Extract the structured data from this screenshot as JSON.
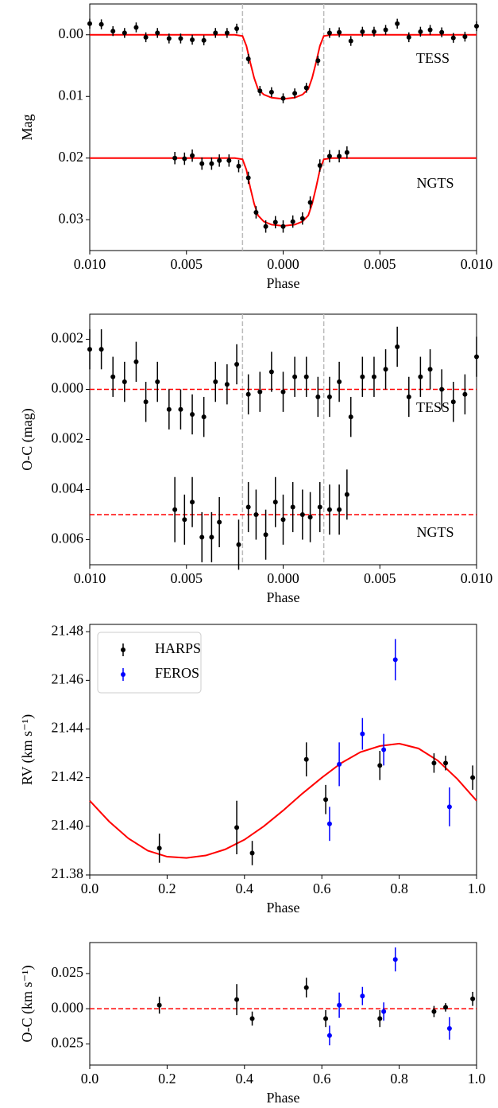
{
  "chart_data": [
    {
      "type": "errorbar",
      "xlabel": "Phase",
      "ylabel": "Mag",
      "xlim": [
        -0.01,
        0.01
      ],
      "xticks": [
        {
          "value": -0.01,
          "label": "0.010"
        },
        {
          "value": -0.005,
          "label": "0.005"
        },
        {
          "value": 0,
          "label": "0.000"
        },
        0.005,
        {
          "value": 0.01,
          "label": "0.010"
        }
      ],
      "ylim": [
        0.035,
        -0.005
      ],
      "yticks": [
        {
          "value": 0,
          "label": "0.00"
        },
        0.01,
        0.02,
        0.03
      ],
      "vlines": [
        -0.0021,
        0.0021
      ],
      "vline_color": "#bbbbbb",
      "annotations": [
        "TESS",
        "NGTS"
      ],
      "series": [
        {
          "color": "#000000",
          "x": [
            -0.01,
            -0.0094,
            -0.0088,
            -0.0082,
            -0.0076,
            -0.0071,
            -0.0065,
            -0.0059,
            -0.0053,
            -0.0047,
            -0.0041,
            -0.0035,
            -0.0029,
            -0.0024,
            -0.0018,
            -0.0012,
            -0.0006,
            0,
            0.0006,
            0.0012,
            0.0018,
            0.0024,
            0.0029,
            0.0035,
            0.0041,
            0.0047,
            0.0053,
            0.0059,
            0.0065,
            0.0071,
            0.0076,
            0.0082,
            0.0088,
            0.0094,
            0.01
          ],
          "values": [
            -0.0018,
            -0.0017,
            -0.0006,
            -0.0003,
            -0.0012,
            0.0004,
            -0.0003,
            0.0006,
            0.0006,
            0.0008,
            0.0009,
            -0.0003,
            -0.0003,
            -0.001,
            0.0039,
            0.0091,
            0.0093,
            0.0103,
            0.0095,
            0.0086,
            0.0042,
            -0.0003,
            -0.0004,
            0.001,
            -0.0005,
            -0.0005,
            -0.0008,
            -0.0018,
            0.0004,
            -0.0005,
            -0.0008,
            -0.0004,
            0.0005,
            0.0003,
            -0.0014
          ],
          "errors": [
            0.0008,
            0.0008,
            0.0008,
            0.0008,
            0.0008,
            0.0008,
            0.0008,
            0.0008,
            0.0008,
            0.0008,
            0.0008,
            0.0008,
            0.0008,
            0.0008,
            0.0008,
            0.0008,
            0.0008,
            0.0008,
            0.0008,
            0.0008,
            0.0008,
            0.0008,
            0.0008,
            0.0008,
            0.0008,
            0.0008,
            0.0008,
            0.0008,
            0.0008,
            0.0008,
            0.0008,
            0.0008,
            0.0008,
            0.0008,
            0.0008
          ]
        },
        {
          "color": "#000000",
          "x": [
            -0.0056,
            -0.0051,
            -0.0047,
            -0.0042,
            -0.0037,
            -0.0033,
            -0.0028,
            -0.0023,
            -0.0018,
            -0.0014,
            -0.0009,
            -0.0004,
            0,
            0.0005,
            0.001,
            0.0014,
            0.0019,
            0.0024,
            0.0029,
            0.0033
          ],
          "values": [
            0.02,
            0.0201,
            0.0196,
            0.0209,
            0.0209,
            0.0204,
            0.0204,
            0.0213,
            0.0232,
            0.0288,
            0.0311,
            0.0304,
            0.0311,
            0.0303,
            0.0298,
            0.0272,
            0.0212,
            0.0197,
            0.0197,
            0.0191
          ],
          "errors": [
            0.001,
            0.001,
            0.001,
            0.001,
            0.001,
            0.001,
            0.001,
            0.001,
            0.001,
            0.001,
            0.001,
            0.001,
            0.001,
            0.001,
            0.001,
            0.001,
            0.001,
            0.001,
            0.001,
            0.001
          ]
        }
      ],
      "models": [
        {
          "color": "#ff0000",
          "x": [
            -0.01,
            -0.0025,
            -0.0021,
            -0.0019,
            -0.0017,
            -0.0015,
            -0.0013,
            -0.001,
            -0.0006,
            0,
            0.0006,
            0.001,
            0.0013,
            0.0015,
            0.0017,
            0.0019,
            0.0021,
            0.0025,
            0.01
          ],
          "values": [
            0,
            0,
            0.0002,
            0.0018,
            0.0045,
            0.007,
            0.0088,
            0.0097,
            0.0102,
            0.0104,
            0.0102,
            0.0097,
            0.0088,
            0.007,
            0.0045,
            0.0018,
            0.0002,
            0,
            0
          ]
        },
        {
          "color": "#ff0000",
          "x": [
            -0.01,
            -0.0025,
            -0.0021,
            -0.0019,
            -0.0017,
            -0.0015,
            -0.0013,
            -0.001,
            -0.0006,
            0,
            0.0006,
            0.001,
            0.0013,
            0.0015,
            0.0017,
            0.0019,
            0.0021,
            0.0025,
            0.01
          ],
          "values": [
            0.02,
            0.02,
            0.0202,
            0.0219,
            0.0248,
            0.0274,
            0.0293,
            0.0303,
            0.0308,
            0.031,
            0.0308,
            0.0303,
            0.0293,
            0.0274,
            0.0248,
            0.0219,
            0.0202,
            0.02,
            0.02
          ]
        }
      ]
    },
    {
      "type": "errorbar",
      "xlabel": "Phase",
      "ylabel": "O-C (mag)",
      "xlim": [
        -0.01,
        0.01
      ],
      "xticks": [
        {
          "value": -0.01,
          "label": "0.010"
        },
        {
          "value": -0.005,
          "label": "0.005"
        },
        {
          "value": 0,
          "label": "0.000"
        },
        0.005,
        {
          "value": 0.01,
          "label": "0.010"
        }
      ],
      "ylim": [
        0.007,
        -0.003
      ],
      "yticks": [
        {
          "value": -0.002,
          "label": "0.002"
        },
        {
          "value": 0,
          "label": "0.000"
        },
        0.002,
        0.004,
        0.006
      ],
      "vlines": [
        -0.0021,
        0.0021
      ],
      "vline_color": "#bbbbbb",
      "hlines": [
        0,
        0.005
      ],
      "hline_color": "#ff0000",
      "annotations": [
        "TESS",
        "NGTS"
      ],
      "series": [
        {
          "color": "#000000",
          "x": [
            -0.01,
            -0.0094,
            -0.0088,
            -0.0082,
            -0.0076,
            -0.0071,
            -0.0065,
            -0.0059,
            -0.0053,
            -0.0047,
            -0.0041,
            -0.0035,
            -0.0029,
            -0.0024,
            -0.0018,
            -0.0012,
            -0.0006,
            0,
            0.0006,
            0.0012,
            0.0018,
            0.0024,
            0.0029,
            0.0035,
            0.0041,
            0.0047,
            0.0053,
            0.0059,
            0.0065,
            0.0071,
            0.0076,
            0.0082,
            0.0088,
            0.0094,
            0.01
          ],
          "values": [
            -0.0016,
            -0.0016,
            -0.0005,
            -0.0003,
            -0.0011,
            0.0005,
            -0.0003,
            0.0008,
            0.0008,
            0.001,
            0.0011,
            -0.0003,
            -0.0002,
            -0.001,
            0.0002,
            0.0001,
            -0.0007,
            0.0001,
            -0.0005,
            -0.0005,
            0.0003,
            0.0003,
            -0.0003,
            0.0011,
            -0.0005,
            -0.0005,
            -0.0008,
            -0.0017,
            0.0003,
            -0.0005,
            -0.0008,
            0,
            0.0005,
            0.0002,
            -0.0013
          ],
          "errors": [
            0.0008,
            0.0008,
            0.0008,
            0.0008,
            0.0008,
            0.0008,
            0.0008,
            0.0008,
            0.0008,
            0.0008,
            0.0008,
            0.0008,
            0.0008,
            0.0008,
            0.0008,
            0.0008,
            0.0008,
            0.0008,
            0.0008,
            0.0008,
            0.0008,
            0.0008,
            0.0008,
            0.0008,
            0.0008,
            0.0008,
            0.0008,
            0.0008,
            0.0008,
            0.0008,
            0.0008,
            0.0008,
            0.0008,
            0.0008,
            0.0008
          ]
        },
        {
          "color": "#000000",
          "x": [
            -0.0056,
            -0.0051,
            -0.0047,
            -0.0042,
            -0.0037,
            -0.0033,
            -0.0023,
            -0.0018,
            -0.0014,
            -0.0009,
            -0.0004,
            0,
            0.0005,
            0.001,
            0.0014,
            0.0019,
            0.0024,
            0.0029,
            0.0033
          ],
          "values": [
            0.0048,
            0.0052,
            0.0045,
            0.0059,
            0.0059,
            0.0053,
            0.0062,
            0.0047,
            0.005,
            0.0058,
            0.0045,
            0.0052,
            0.0047,
            0.005,
            0.0051,
            0.0047,
            0.0048,
            0.0048,
            0.0042
          ],
          "errors": [
            0.0013,
            0.001,
            0.001,
            0.001,
            0.001,
            0.001,
            0.001,
            0.001,
            0.001,
            0.001,
            0.001,
            0.001,
            0.001,
            0.001,
            0.001,
            0.001,
            0.001,
            0.001,
            0.001
          ]
        }
      ]
    },
    {
      "type": "errorbar",
      "xlabel": "Phase",
      "ylabel": "RV (km s⁻¹)",
      "xlim": [
        0,
        1
      ],
      "xticks": [
        {
          "value": 0,
          "label": "0.0"
        },
        0.2,
        0.4,
        0.6,
        0.8,
        {
          "value": 1,
          "label": "1.0"
        }
      ],
      "ylim": [
        21.38,
        21.483
      ],
      "yticks": [
        21.38,
        {
          "value": 21.4,
          "label": "21.40"
        },
        21.42,
        21.44,
        21.46,
        21.48
      ],
      "legend": "upper left",
      "series": [
        {
          "name": "HARPS",
          "color": "#000000",
          "x": [
            0.18,
            0.38,
            0.42,
            0.56,
            0.61,
            0.75,
            0.89,
            0.92,
            0.99
          ],
          "values": [
            21.391,
            21.3995,
            21.389,
            21.4275,
            21.411,
            21.425,
            21.426,
            21.426,
            21.42
          ],
          "errors": [
            0.006,
            0.011,
            0.005,
            0.007,
            0.006,
            0.006,
            0.004,
            0.003,
            0.005
          ]
        },
        {
          "name": "FEROS",
          "color": "#0000ff",
          "x": [
            0.62,
            0.645,
            0.705,
            0.76,
            0.79,
            0.93
          ],
          "values": [
            21.401,
            21.4255,
            21.438,
            21.4315,
            21.4685,
            21.408
          ],
          "errors": [
            0.007,
            0.009,
            0.0065,
            0.0065,
            0.0085,
            0.008
          ]
        }
      ],
      "models": [
        {
          "color": "#ff0000",
          "x": [
            0,
            0.05,
            0.1,
            0.15,
            0.2,
            0.25,
            0.3,
            0.35,
            0.4,
            0.45,
            0.5,
            0.55,
            0.6,
            0.65,
            0.7,
            0.75,
            0.8,
            0.85,
            0.9,
            0.95,
            1
          ],
          "values": [
            21.4105,
            21.402,
            21.395,
            21.39,
            21.3875,
            21.387,
            21.388,
            21.3905,
            21.3945,
            21.4,
            21.4065,
            21.4135,
            21.42,
            21.426,
            21.4305,
            21.433,
            21.434,
            21.432,
            21.427,
            21.4195,
            21.4105
          ]
        }
      ]
    },
    {
      "type": "errorbar",
      "xlabel": "Phase",
      "ylabel": "O-C (km s⁻¹)",
      "xlim": [
        0,
        1
      ],
      "xticks": [
        {
          "value": 0,
          "label": "0.0"
        },
        0.2,
        0.4,
        0.6,
        0.8,
        {
          "value": 1,
          "label": "1.0"
        }
      ],
      "ylim": [
        -0.04,
        0.047
      ],
      "yticks": [
        {
          "value": -0.025,
          "label": "0.025"
        },
        {
          "value": 0,
          "label": "0.000"
        },
        0.025
      ],
      "hlines": [
        0
      ],
      "hline_color": "#ff0000",
      "series": [
        {
          "color": "#000000",
          "x": [
            0.18,
            0.38,
            0.42,
            0.56,
            0.61,
            0.75,
            0.89,
            0.92,
            0.99
          ],
          "values": [
            0.0025,
            0.0065,
            -0.007,
            0.015,
            -0.007,
            -0.007,
            -0.002,
            0.001,
            0.007
          ],
          "errors": [
            0.006,
            0.011,
            0.005,
            0.007,
            0.006,
            0.006,
            0.004,
            0.003,
            0.005
          ]
        },
        {
          "color": "#0000ff",
          "x": [
            0.62,
            0.645,
            0.705,
            0.76,
            0.79,
            0.93
          ],
          "values": [
            -0.019,
            0.0025,
            0.009,
            -0.002,
            0.035,
            -0.014
          ],
          "errors": [
            0.007,
            0.009,
            0.0065,
            0.0065,
            0.0085,
            0.008
          ]
        }
      ]
    }
  ]
}
